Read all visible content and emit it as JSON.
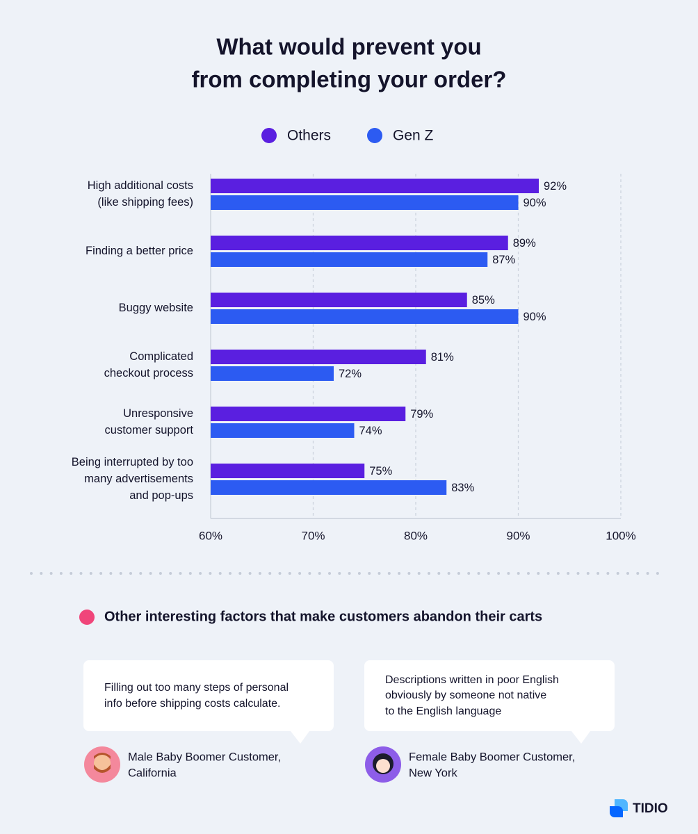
{
  "chart_data": {
    "type": "hbar",
    "title": [
      "What would prevent you",
      "from completing your order?"
    ],
    "categories": [
      [
        "High additional costs",
        "(like shipping fees)"
      ],
      [
        "Finding a better price"
      ],
      [
        "Buggy website"
      ],
      [
        "Complicated",
        "checkout process"
      ],
      [
        "Unresponsive",
        "customer support"
      ],
      [
        "Being interrupted by too",
        "many advertisements",
        "and pop-ups"
      ]
    ],
    "series": [
      {
        "name": "Others",
        "color": "#5a1fe0",
        "label_color": "#4a1fc8",
        "values": [
          92,
          89,
          85,
          81,
          79,
          75
        ],
        "value_labels": [
          "92%",
          "89%",
          "85%",
          "81%",
          "79%",
          "75%"
        ]
      },
      {
        "name": "Gen Z",
        "color": "#2c5bf2",
        "label_color": "#2c5bf2",
        "values": [
          90,
          87,
          90,
          72,
          74,
          83
        ],
        "value_labels": [
          "90%",
          "87%",
          "90%",
          "72%",
          "74%",
          "83%"
        ]
      }
    ],
    "xlim": [
      60,
      100
    ],
    "xticks": [
      {
        "value": 60,
        "label": "60%"
      },
      {
        "value": 70,
        "label": "70%"
      },
      {
        "value": 80,
        "label": "80%"
      },
      {
        "value": 90,
        "label": "90%"
      },
      {
        "value": 100,
        "label": "100%"
      }
    ],
    "grid": true,
    "legend": "top"
  },
  "section": {
    "heading": "Other interesting factors that make customers abandon their carts",
    "quotes": [
      {
        "text": [
          "Filling out too many steps of personal",
          "info before shipping costs calculate."
        ],
        "author": [
          "Male Baby Boomer Customer,",
          "California"
        ]
      },
      {
        "text": [
          "Descriptions written in poor English",
          "obviously by someone not native",
          "to the English language"
        ],
        "author": [
          "Female Baby Boomer Customer,",
          "New York"
        ]
      }
    ]
  },
  "brand": "TIDIO"
}
